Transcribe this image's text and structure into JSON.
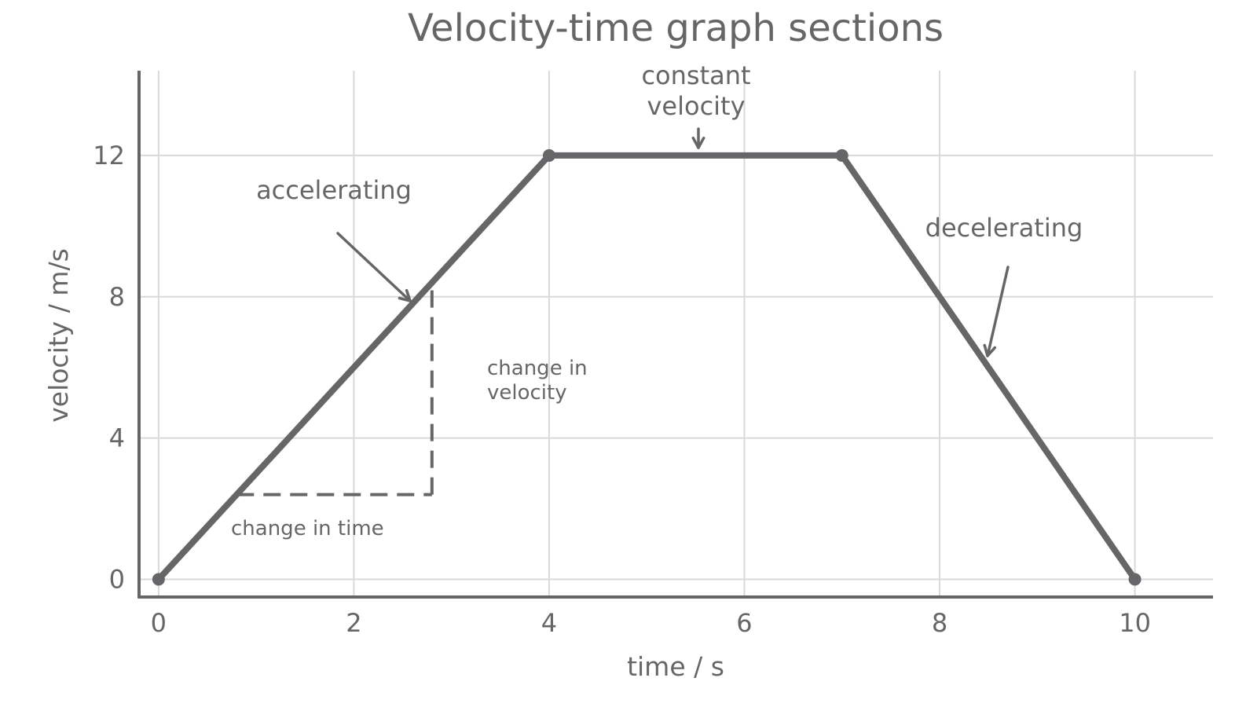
{
  "chart_data": {
    "type": "line",
    "title": "Velocity-time graph sections",
    "xlabel": "time / s",
    "ylabel": "velocity / m/s",
    "xlim": [
      -0.2,
      10.8
    ],
    "ylim": [
      -0.5,
      14.4
    ],
    "x_ticks": [
      "0",
      "2",
      "4",
      "6",
      "8",
      "10"
    ],
    "y_ticks": [
      "0",
      "4",
      "8",
      "12"
    ],
    "grid": true,
    "series": [
      {
        "x": [
          0,
          4,
          7,
          10
        ],
        "y": [
          0,
          12,
          12,
          0
        ]
      }
    ],
    "annotations": {
      "accelerating": "accelerating",
      "constant_line1": "constant",
      "constant_line2": "velocity",
      "decelerating": "decelerating",
      "change_in_velocity_line1": "change in",
      "change_in_velocity_line2": "velocity",
      "change_in_time": "change in time"
    },
    "construction_triangle": {
      "x_from": 0.8,
      "x_to": 2.8,
      "y_from": 2.4,
      "y_to": 8.4
    },
    "colors": {
      "ink": "#666669",
      "grid": "#d9d9d9",
      "line": "#666669"
    }
  }
}
